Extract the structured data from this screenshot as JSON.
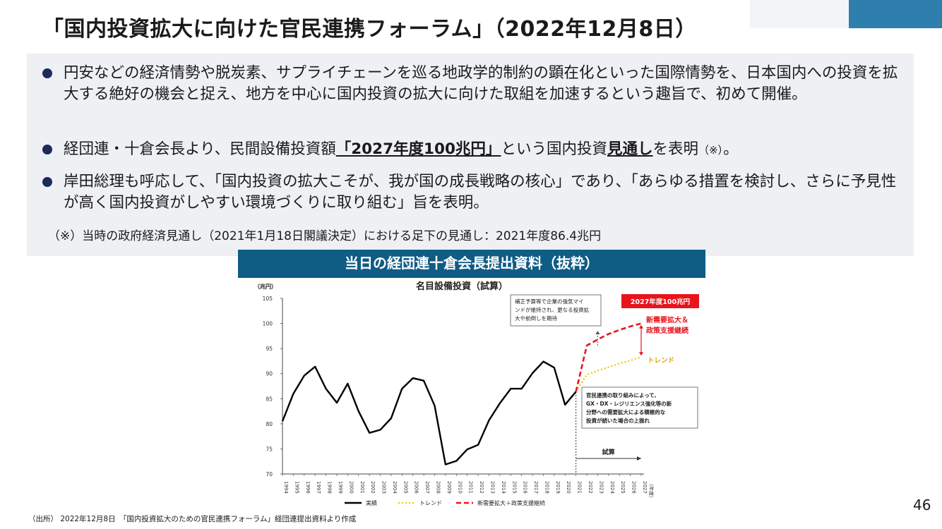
{
  "title": "「国内投資拡大に向けた官民連携フォーラム」（2022年12月8日）",
  "bullets": [
    {
      "text": "円安などの経済情勢や脱炭素、サプライチェーンを巡る地政学的制約の顕在化といった国際情勢を、日本国内への投資を拡大する絶好の機会と捉え、地方を中心に国内投資の拡大に向けた取組を加速するという趣旨で、初めて開催。"
    },
    {
      "pre": "経団連・十倉会長より、民間設備投資額",
      "highlight1": "「2027年度100兆円」",
      "mid": "という国内投資",
      "highlight2": "見通し",
      "post": "を表明",
      "small": "（※）",
      "end": "。"
    },
    {
      "text": "岸田総理も呼応して、「国内投資の拡大こそが、我が国の成長戦略の核心」であり、「あらゆる措置を検討し、さらに予見性が高く国内投資がしやすい環境づくりに取り組む」旨を表明。"
    }
  ],
  "note": "（※）当時の政府経済見通し（2021年1月18日閣議決定）における足下の見通し：2021年度86.4兆円",
  "banner": "当日の経団連十倉会長提出資料（抜粋）",
  "source": "（出所） 2022年12月8日　「国内投資拡大のための官民連携フォーラム」経団連提出資料より作成",
  "page_number": "46",
  "colors": {
    "actual": "#000000",
    "trend": "#f5c400",
    "target": "#e8141b",
    "banner": "#0f5c85",
    "bullet": "#1d2a5c"
  },
  "chart_data": {
    "type": "line",
    "title": "名目設備投資（試算）",
    "ylabel": "（兆円）",
    "xlabel": "（年度）",
    "ylim": [
      70,
      105
    ],
    "yticks": [
      70,
      75,
      80,
      85,
      90,
      95,
      100,
      105
    ],
    "x": [
      "1994",
      "1995",
      "1996",
      "1997",
      "1998",
      "1999",
      "2000",
      "2001",
      "2002",
      "2003",
      "2004",
      "2005",
      "2006",
      "2007",
      "2008",
      "2009",
      "2010",
      "2011",
      "2012",
      "2013",
      "2014",
      "2015",
      "2016",
      "2017",
      "2018",
      "2019",
      "2020",
      "2021",
      "2022",
      "2023",
      "2024",
      "2025",
      "2026",
      "2027"
    ],
    "series": [
      {
        "name": "実績",
        "x": [
          "1994",
          "1995",
          "1996",
          "1997",
          "1998",
          "1999",
          "2000",
          "2001",
          "2002",
          "2003",
          "2004",
          "2005",
          "2006",
          "2007",
          "2008",
          "2009",
          "2010",
          "2011",
          "2012",
          "2013",
          "2014",
          "2015",
          "2016",
          "2017",
          "2018",
          "2019",
          "2020",
          "2021"
        ],
        "values": [
          80.5,
          86.0,
          89.6,
          91.4,
          87.0,
          84.2,
          88.0,
          82.5,
          78.2,
          78.8,
          81.1,
          87.0,
          89.1,
          88.6,
          83.6,
          71.9,
          72.6,
          74.9,
          75.8,
          80.7,
          84.1,
          87.0,
          87.0,
          90.1,
          92.4,
          91.2,
          83.8,
          86.4
        ]
      },
      {
        "name": "トレンド",
        "x": [
          "2021",
          "2022",
          "2023",
          "2024",
          "2025",
          "2026",
          "2027"
        ],
        "values": [
          86.4,
          89.8,
          90.6,
          91.3,
          92.0,
          92.6,
          93.3
        ]
      },
      {
        "name": "新需要拡大＋政策支援継続",
        "x": [
          "2021",
          "2022",
          "2023",
          "2024",
          "2025",
          "2026",
          "2027"
        ],
        "values": [
          86.4,
          95.6,
          96.8,
          97.9,
          98.7,
          99.4,
          100.0
        ]
      }
    ],
    "annotations": {
      "target_box": "2027年度100兆円",
      "red_label_1": "新需要拡大＆",
      "red_label_2": "政策支援継続",
      "trend_label": "トレンド",
      "top_box": [
        "補正予算等で企業の強気マイ",
        "ンドが維持され、更なる投資拡",
        "大や前倒しを期待"
      ],
      "bottom_box": [
        "官民連携の取り組みによって、",
        "GX・DX・レジリエンス強化等の新",
        "分野への需要拡大による積極的な",
        "投資が続いた場合の上振れ"
      ],
      "estimate_label": "試算"
    },
    "legend": [
      "実績",
      "トレンド",
      "新需要拡大＋政策支援継続"
    ],
    "legend_position": "bottom",
    "grid": false
  }
}
